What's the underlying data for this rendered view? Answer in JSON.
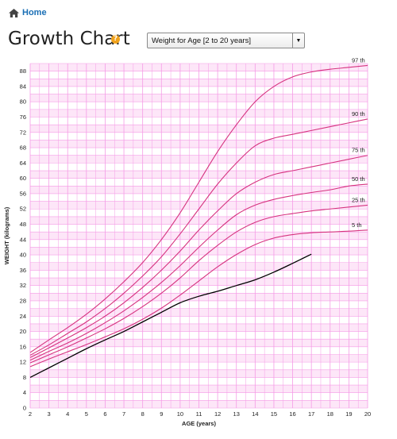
{
  "nav": {
    "home_label": "Home",
    "home_icon": "home-icon"
  },
  "header": {
    "title": "Growth Chart",
    "help_icon": "?"
  },
  "selector": {
    "selected": "Weight for Age [2 to 20 years]"
  },
  "colors": {
    "grid_band": "#fde6f8",
    "grid_line": "#f59ce6",
    "percentile_line": "#d6337f",
    "child_line": "#000000",
    "link": "#1a6fb5",
    "help": "#f0a21c"
  },
  "chart_data": {
    "type": "line",
    "xlabel": "AGE (years)",
    "ylabel": "WEIGHT (kilograms)",
    "xlim": [
      2,
      20
    ],
    "ylim": [
      0,
      90
    ],
    "x_ticks": [
      2,
      3,
      4,
      5,
      6,
      7,
      8,
      9,
      10,
      11,
      12,
      13,
      14,
      15,
      16,
      17,
      18,
      19,
      20
    ],
    "y_ticks": [
      0,
      4,
      8,
      12,
      16,
      20,
      24,
      28,
      32,
      36,
      40,
      44,
      48,
      52,
      56,
      60,
      64,
      68,
      72,
      76,
      80,
      84,
      88
    ],
    "x": [
      2,
      3,
      4,
      5,
      6,
      7,
      8,
      9,
      10,
      11,
      12,
      13,
      14,
      15,
      16,
      17,
      18,
      19,
      20
    ],
    "series": [
      {
        "name": "97 th",
        "values": [
          14.5,
          17.8,
          21,
          24.5,
          28.5,
          33,
          38,
          44,
          51,
          59,
          67,
          74,
          80,
          84,
          86.5,
          87.8,
          88.5,
          89,
          89.5
        ]
      },
      {
        "name": "90 th",
        "values": [
          13.8,
          16.5,
          19.5,
          22.5,
          26,
          30,
          34.5,
          39.5,
          45.5,
          52,
          58.5,
          64,
          68.5,
          70.5,
          71.5,
          72.5,
          73.5,
          74.5,
          75.5
        ]
      },
      {
        "name": "75 th",
        "values": [
          13.2,
          15.7,
          18.3,
          21,
          24,
          27.5,
          31.5,
          36,
          41,
          46.5,
          51.5,
          56,
          59,
          61,
          62,
          63,
          64,
          65,
          66
        ]
      },
      {
        "name": "50 th",
        "values": [
          12.5,
          14.8,
          17,
          19.5,
          22.3,
          25.4,
          28.9,
          32.8,
          37.2,
          42,
          46.5,
          50.5,
          53,
          54.5,
          55.5,
          56.3,
          57,
          58,
          58.5
        ]
      },
      {
        "name": "25 th",
        "values": [
          11.8,
          13.9,
          16,
          18.3,
          20.7,
          23.4,
          26.5,
          30,
          34,
          38.5,
          42.5,
          46,
          48.5,
          50,
          50.8,
          51.5,
          52,
          52.5,
          53
        ]
      },
      {
        "name": "5 th",
        "values": [
          10.8,
          12.8,
          14.7,
          16.6,
          18.6,
          20.7,
          23.2,
          26.1,
          29.5,
          33.2,
          36.9,
          40.1,
          42.7,
          44.4,
          45.3,
          45.8,
          46,
          46.2,
          46.5
        ]
      }
    ],
    "child": {
      "x": [
        2,
        3,
        4,
        5,
        6,
        7,
        8,
        9,
        10,
        11,
        12,
        13,
        14,
        15,
        16,
        17
      ],
      "values": [
        8,
        10.5,
        13,
        15.5,
        17.8,
        20,
        22.5,
        25,
        27.5,
        29.2,
        30.5,
        32,
        33.5,
        35.5,
        37.8,
        40.2
      ]
    }
  }
}
